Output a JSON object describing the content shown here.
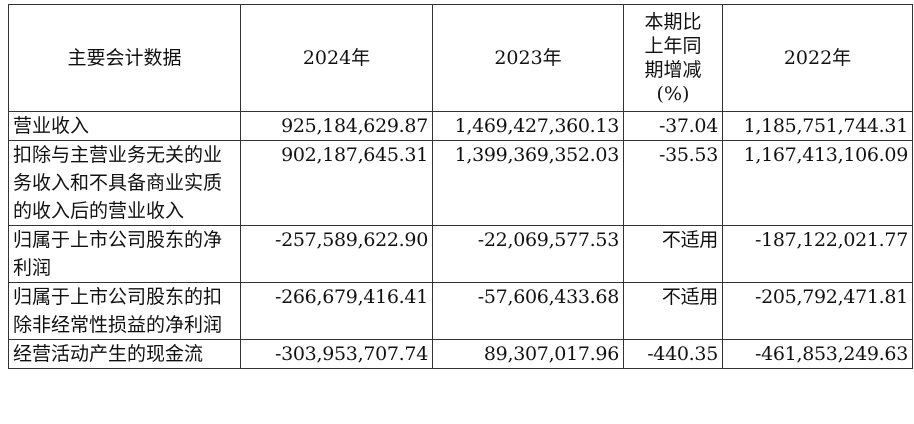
{
  "header": {
    "item": "主要会计数据",
    "y2024": "2024年",
    "y2023": "2023年",
    "change_lines": [
      "本期比",
      "上年同",
      "期增减",
      "(%)"
    ],
    "y2022": "2022年"
  },
  "rows": [
    {
      "label": "营业收入",
      "y2024": "925,184,629.87",
      "y2023": "1,469,427,360.13",
      "change": "-37.04",
      "y2022": "1,185,751,744.31"
    },
    {
      "label": "扣除与主营业务无关的业务收入和不具备商业实质的收入后的营业收入",
      "y2024": "902,187,645.31",
      "y2023": "1,399,369,352.03",
      "change": "-35.53",
      "y2022": "1,167,413,106.09"
    },
    {
      "label": "归属于上市公司股东的净利润",
      "y2024": "-257,589,622.90",
      "y2023": "-22,069,577.53",
      "change": "不适用",
      "y2022": "-187,122,021.77"
    },
    {
      "label": "归属于上市公司股东的扣除非经常性损益的净利润",
      "y2024": "-266,679,416.41",
      "y2023": "-57,606,433.68",
      "change": "不适用",
      "y2022": "-205,792,471.81"
    },
    {
      "label": "经营活动产生的现金流",
      "y2024": "-303,953,707.74",
      "y2023": "89,307,017.96",
      "change": "-440.35",
      "y2022": "-461,853,249.63"
    }
  ]
}
